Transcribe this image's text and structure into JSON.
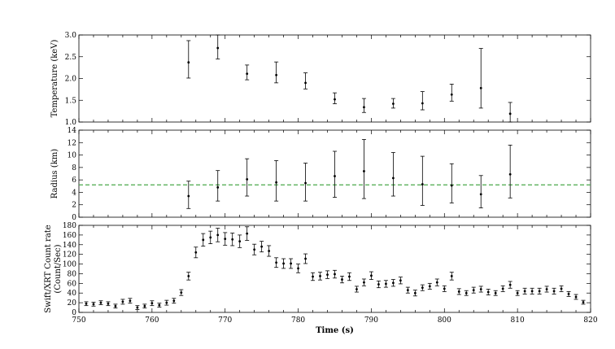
{
  "chart_data": [
    {
      "type": "scatter",
      "ylabel": "Temperature (keV)",
      "xlim": [
        750,
        820
      ],
      "ylim": [
        1.0,
        3.0
      ],
      "yticks": [
        "1.0",
        "1.5",
        "2.0",
        "2.5",
        "3.0"
      ],
      "series": [
        {
          "x": [
            765,
            769,
            773,
            777,
            781,
            785,
            789,
            793,
            797,
            801,
            805,
            809
          ],
          "y": [
            2.37,
            2.7,
            2.11,
            2.08,
            1.9,
            1.52,
            1.34,
            1.42,
            1.43,
            1.63,
            1.78,
            1.19
          ],
          "err_low": [
            0.36,
            0.25,
            0.14,
            0.18,
            0.14,
            0.1,
            0.12,
            0.1,
            0.15,
            0.15,
            0.46,
            0.19
          ],
          "err_high": [
            0.5,
            0.32,
            0.2,
            0.3,
            0.23,
            0.15,
            0.2,
            0.12,
            0.27,
            0.24,
            0.91,
            0.26
          ]
        }
      ]
    },
    {
      "type": "scatter",
      "ylabel": "Radius (km)",
      "xlim": [
        750,
        820
      ],
      "ylim": [
        0,
        14
      ],
      "yticks": [
        "0",
        "2",
        "4",
        "6",
        "8",
        "10",
        "12",
        "14"
      ],
      "reference_line": {
        "y": 5.2,
        "color": "#4aa84a",
        "style": "dashed"
      },
      "series": [
        {
          "x": [
            765,
            769,
            773,
            777,
            781,
            785,
            789,
            793,
            797,
            801,
            805,
            809
          ],
          "y": [
            3.4,
            4.8,
            6.1,
            5.6,
            5.5,
            6.6,
            7.4,
            6.3,
            5.3,
            5.1,
            3.7,
            6.9
          ],
          "err_low": [
            2.0,
            2.2,
            2.7,
            3.0,
            2.9,
            3.4,
            4.4,
            2.9,
            3.4,
            2.8,
            2.2,
            3.8
          ],
          "err_high": [
            2.4,
            2.7,
            3.3,
            3.5,
            3.2,
            4.0,
            5.1,
            4.1,
            4.5,
            3.5,
            3.0,
            4.7
          ]
        }
      ]
    },
    {
      "type": "scatter",
      "ylabel": "Swift/XRT Count rate",
      "ylabel2": "(Count/Sec)",
      "xlabel": "Time (s)",
      "xlim": [
        750,
        820
      ],
      "ylim": [
        0,
        180
      ],
      "xticks": [
        "750",
        "760",
        "770",
        "780",
        "790",
        "800",
        "810",
        "820"
      ],
      "yticks": [
        "0",
        "20",
        "40",
        "60",
        "80",
        "100",
        "120",
        "140",
        "160",
        "180"
      ],
      "series": [
        {
          "x": [
            751,
            752,
            753,
            754,
            755,
            756,
            757,
            758,
            759,
            760,
            761,
            762,
            763,
            764,
            765,
            766,
            767,
            768,
            769,
            770,
            771,
            772,
            773,
            774,
            775,
            776,
            777,
            778,
            779,
            780,
            781,
            782,
            783,
            784,
            785,
            786,
            787,
            788,
            789,
            790,
            791,
            792,
            793,
            794,
            795,
            796,
            797,
            798,
            799,
            800,
            801,
            802,
            803,
            804,
            805,
            806,
            807,
            808,
            809,
            810,
            811,
            812,
            813,
            814,
            815,
            816,
            817,
            818,
            819
          ],
          "y": [
            18,
            17,
            20,
            18,
            13,
            22,
            24,
            10,
            13,
            19,
            15,
            20,
            24,
            41,
            75,
            124,
            150,
            155,
            160,
            152,
            151,
            147,
            163,
            130,
            136,
            127,
            103,
            101,
            101,
            91,
            111,
            74,
            75,
            78,
            79,
            68,
            74,
            48,
            62,
            76,
            58,
            59,
            61,
            66,
            46,
            40,
            51,
            54,
            62,
            49,
            75,
            43,
            40,
            46,
            48,
            42,
            40,
            49,
            57,
            40,
            44,
            44,
            44,
            48,
            44,
            49,
            38,
            32,
            21
          ],
          "err": [
            4,
            4,
            4,
            4,
            4,
            5,
            5,
            4,
            4,
            5,
            4,
            5,
            5,
            6,
            8,
            11,
            13,
            13,
            14,
            13,
            13,
            13,
            14,
            11,
            11,
            11,
            10,
            10,
            10,
            9,
            10,
            8,
            8,
            8,
            8,
            7,
            8,
            6,
            7,
            8,
            7,
            7,
            7,
            7,
            6,
            6,
            6,
            6,
            7,
            6,
            8,
            6,
            5,
            6,
            6,
            6,
            5,
            6,
            7,
            5,
            6,
            6,
            6,
            6,
            6,
            6,
            5,
            5,
            4
          ]
        }
      ]
    }
  ]
}
